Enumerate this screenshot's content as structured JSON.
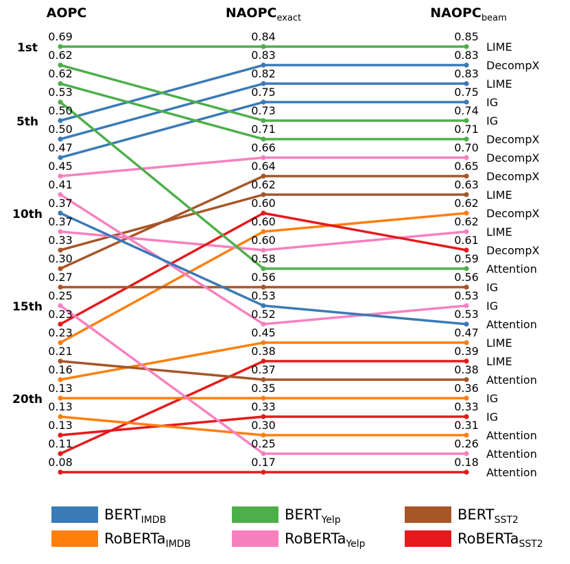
{
  "chart_data": {
    "type": "slope",
    "column_titles": [
      {
        "base": "AOPC",
        "sub": ""
      },
      {
        "base": "NAOPC",
        "sub": "exact"
      },
      {
        "base": "NAOPC",
        "sub": "beam"
      }
    ],
    "rank_labels": [
      {
        "rank": 1,
        "label": "1st"
      },
      {
        "rank": 5,
        "label": "5th"
      },
      {
        "rank": 10,
        "label": "10th"
      },
      {
        "rank": 15,
        "label": "15th"
      },
      {
        "rank": 20,
        "label": "20th"
      }
    ],
    "series": [
      {
        "key": "BERT_IMDB",
        "name": "BERT",
        "sub": "IMDB",
        "color": "#3a7ab7"
      },
      {
        "key": "RoBERTa_IMDB",
        "name": "RoBERTa",
        "sub": "IMDB",
        "color": "#ff7f0e"
      },
      {
        "key": "BERT_Yelp",
        "name": "BERT",
        "sub": "Yelp",
        "color": "#4daf4a"
      },
      {
        "key": "RoBERTa_Yelp",
        "name": "RoBERTa",
        "sub": "Yelp",
        "color": "#f781bf"
      },
      {
        "key": "BERT_SST2",
        "name": "BERT",
        "sub": "SST2",
        "color": "#a65628"
      },
      {
        "key": "RoBERTa_SST2",
        "name": "RoBERTa",
        "sub": "SST2",
        "color": "#e41a1c"
      }
    ],
    "column_values": [
      [
        "0.69",
        "0.62",
        "0.62",
        "0.53",
        "0.50",
        "0.50",
        "0.47",
        "0.45",
        "0.41",
        "0.37",
        "0.37",
        "0.33",
        "0.30",
        "0.27",
        "0.25",
        "0.23",
        "0.23",
        "0.21",
        "0.16",
        "0.13",
        "0.13",
        "0.13",
        "0.11",
        "0.08"
      ],
      [
        "0.84",
        "0.83",
        "0.82",
        "0.75",
        "0.73",
        "0.71",
        "0.66",
        "0.64",
        "0.62",
        "0.60",
        "0.60",
        "0.60",
        "0.58",
        "0.56",
        "0.53",
        "0.52",
        "0.45",
        "0.38",
        "0.37",
        "0.35",
        "0.33",
        "0.30",
        "0.25",
        "0.17"
      ],
      [
        "0.85",
        "0.83",
        "0.83",
        "0.75",
        "0.74",
        "0.71",
        "0.70",
        "0.65",
        "0.63",
        "0.62",
        "0.62",
        "0.61",
        "0.59",
        "0.56",
        "0.53",
        "0.53",
        "0.47",
        "0.39",
        "0.38",
        "0.36",
        "0.33",
        "0.31",
        "0.26",
        "0.18"
      ]
    ],
    "method_labels": [
      "LIME",
      "DecompX",
      "LIME",
      "IG",
      "IG",
      "DecompX",
      "DecompX",
      "DecompX",
      "LIME",
      "DecompX",
      "LIME",
      "DecompX",
      "Attention",
      "IG",
      "IG",
      "Attention",
      "LIME",
      "LIME",
      "Attention",
      "IG",
      "IG",
      "Attention",
      "Attention",
      "Attention"
    ],
    "lines": [
      {
        "series": "BERT_Yelp",
        "method": "LIME",
        "ranks": [
          1,
          1,
          1
        ]
      },
      {
        "series": "BERT_IMDB",
        "method": "DecompX",
        "ranks": [
          5,
          2,
          2
        ]
      },
      {
        "series": "BERT_IMDB",
        "method": "LIME",
        "ranks": [
          6,
          3,
          3
        ]
      },
      {
        "series": "BERT_IMDB",
        "method": "IG",
        "ranks": [
          7,
          4,
          4
        ]
      },
      {
        "series": "BERT_Yelp",
        "method": "IG",
        "ranks": [
          2,
          5,
          5
        ]
      },
      {
        "series": "BERT_Yelp",
        "method": "DecompX",
        "ranks": [
          3,
          6,
          6
        ]
      },
      {
        "series": "RoBERTa_Yelp",
        "method": "DecompX",
        "ranks": [
          8,
          7,
          7
        ]
      },
      {
        "series": "BERT_SST2",
        "method": "DecompX",
        "ranks": [
          13,
          8,
          8
        ]
      },
      {
        "series": "BERT_SST2",
        "method": "LIME",
        "ranks": [
          12,
          9,
          9
        ]
      },
      {
        "series": "RoBERTa_IMDB",
        "method": "DecompX",
        "ranks": [
          17,
          11,
          10
        ]
      },
      {
        "series": "RoBERTa_Yelp",
        "method": "LIME",
        "ranks": [
          11,
          12,
          11
        ]
      },
      {
        "series": "RoBERTa_SST2",
        "method": "DecompX",
        "ranks": [
          16,
          10,
          12
        ]
      },
      {
        "series": "BERT_Yelp",
        "method": "Attention",
        "ranks": [
          4,
          13,
          13
        ]
      },
      {
        "series": "BERT_SST2",
        "method": "IG",
        "ranks": [
          14,
          14,
          14
        ]
      },
      {
        "series": "RoBERTa_Yelp",
        "method": "IG",
        "ranks": [
          9,
          16,
          15
        ]
      },
      {
        "series": "BERT_IMDB",
        "method": "Attention",
        "ranks": [
          10,
          15,
          16
        ]
      },
      {
        "series": "RoBERTa_IMDB",
        "method": "LIME",
        "ranks": [
          19,
          17,
          17
        ]
      },
      {
        "series": "RoBERTa_SST2",
        "method": "LIME",
        "ranks": [
          23,
          18,
          18
        ]
      },
      {
        "series": "BERT_SST2",
        "method": "Attention",
        "ranks": [
          18,
          19,
          19
        ]
      },
      {
        "series": "RoBERTa_IMDB",
        "method": "IG",
        "ranks": [
          20,
          20,
          20
        ]
      },
      {
        "series": "RoBERTa_SST2",
        "method": "IG",
        "ranks": [
          22,
          21,
          21
        ]
      },
      {
        "series": "RoBERTa_IMDB",
        "method": "Attention",
        "ranks": [
          21,
          22,
          22
        ]
      },
      {
        "series": "RoBERTa_Yelp",
        "method": "Attention",
        "ranks": [
          15,
          23,
          23
        ]
      },
      {
        "series": "RoBERTa_SST2",
        "method": "Attention",
        "ranks": [
          24,
          24,
          24
        ]
      }
    ]
  }
}
